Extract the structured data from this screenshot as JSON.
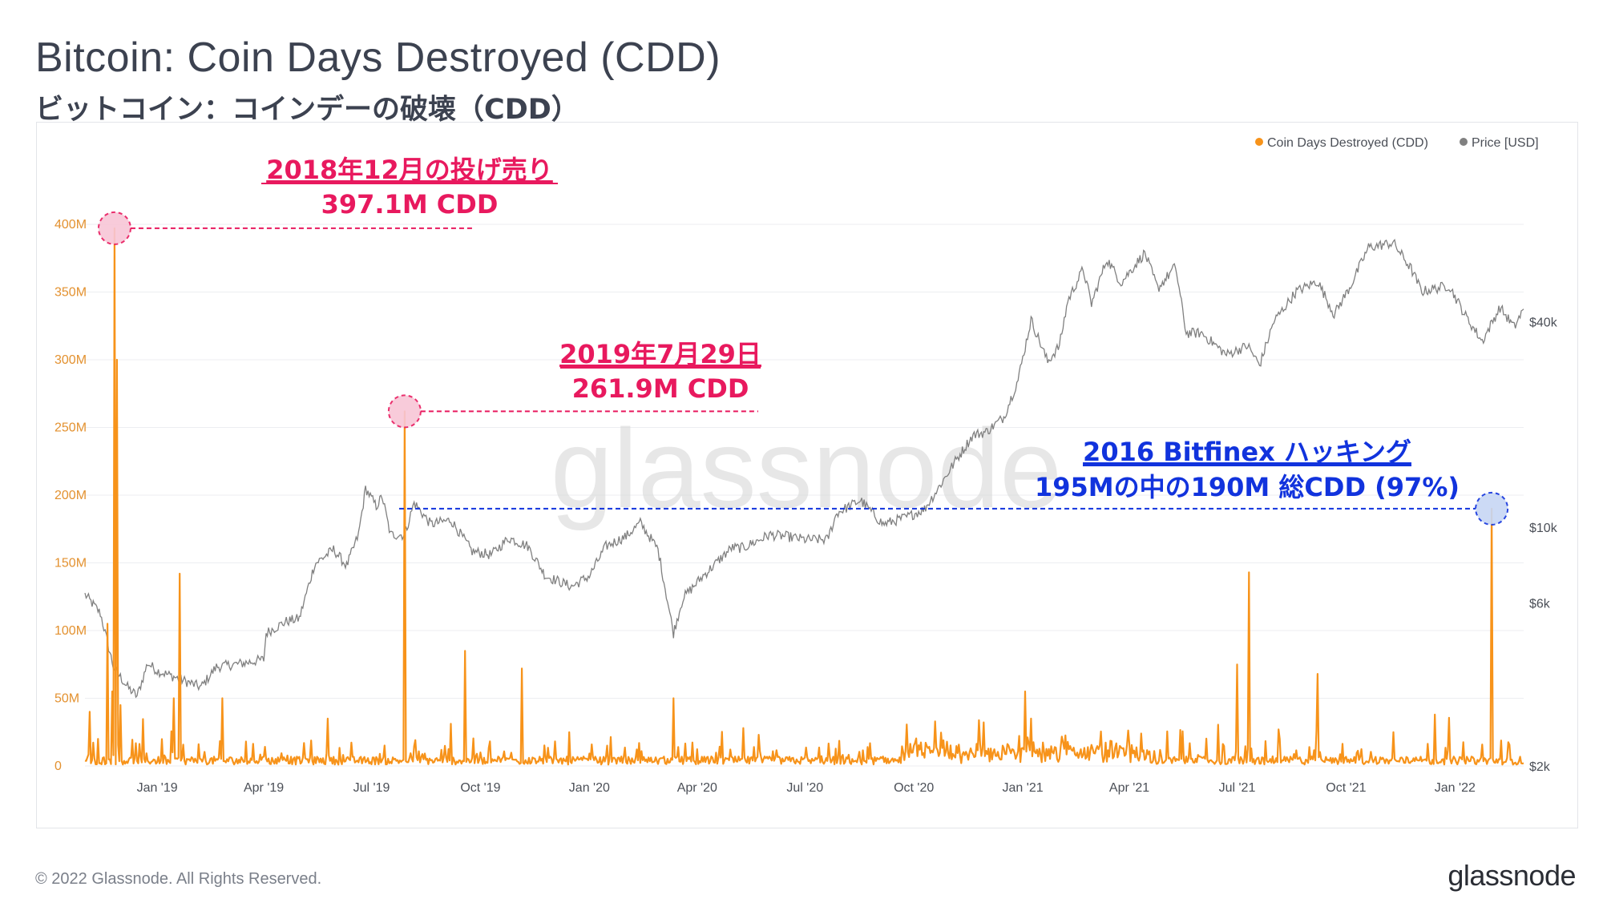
{
  "header": {
    "title": "Bitcoin: Coin Days Destroyed (CDD)",
    "subtitle": "ビットコイン：コインデーの破壊（CDD）"
  },
  "footer": {
    "copyright": "© 2022 Glassnode. All Rights Reserved.",
    "brand": "glassnode"
  },
  "watermark": "glassnode",
  "legend": [
    {
      "label": "Coin Days Destroyed (CDD)",
      "color": "#f7931a"
    },
    {
      "label": "Price [USD]",
      "color": "#808080"
    }
  ],
  "chart_data": {
    "type": "line",
    "title": "Bitcoin: Coin Days Destroyed (CDD)",
    "x_range": [
      "2018-11-01",
      "2022-02-28"
    ],
    "x_ticks": [
      "Jan '19",
      "Apr '19",
      "Jul '19",
      "Oct '19",
      "Jan '20",
      "Apr '20",
      "Jul '20",
      "Oct '20",
      "Jan '21",
      "Apr '21",
      "Jul '21",
      "Oct '21",
      "Jan '22"
    ],
    "y_left": {
      "label": "",
      "ticks": [
        "0",
        "50M",
        "100M",
        "150M",
        "200M",
        "250M",
        "300M",
        "350M",
        "400M"
      ],
      "range": [
        0,
        400000000
      ]
    },
    "y_right": {
      "label": "",
      "scale": "log",
      "ticks": [
        "$2k",
        "$6k",
        "$10k",
        "$40k"
      ]
    },
    "series": [
      {
        "name": "Coin Days Destroyed (CDD)",
        "color": "#f7931a",
        "axis": "left",
        "baseline_M": 5,
        "spikes_M": [
          {
            "date": "2018-11-05",
            "value": 40
          },
          {
            "date": "2018-11-12",
            "value": 20
          },
          {
            "date": "2018-11-20",
            "value": 105
          },
          {
            "date": "2018-11-24",
            "value": 55
          },
          {
            "date": "2018-11-26",
            "value": 397.1
          },
          {
            "date": "2018-11-28",
            "value": 300
          },
          {
            "date": "2018-12-01",
            "value": 45
          },
          {
            "date": "2019-01-15",
            "value": 50
          },
          {
            "date": "2019-01-20",
            "value": 142
          },
          {
            "date": "2019-02-25",
            "value": 50
          },
          {
            "date": "2019-05-25",
            "value": 35
          },
          {
            "date": "2019-07-29",
            "value": 261.9
          },
          {
            "date": "2019-09-18",
            "value": 85
          },
          {
            "date": "2019-11-05",
            "value": 72
          },
          {
            "date": "2019-12-15",
            "value": 25
          },
          {
            "date": "2020-03-12",
            "value": 50
          },
          {
            "date": "2020-05-10",
            "value": 28
          },
          {
            "date": "2021-01-03",
            "value": 55
          },
          {
            "date": "2021-01-08",
            "value": 35
          },
          {
            "date": "2021-07-01",
            "value": 75
          },
          {
            "date": "2021-07-11",
            "value": 143
          },
          {
            "date": "2021-08-05",
            "value": 27
          },
          {
            "date": "2021-09-07",
            "value": 68
          },
          {
            "date": "2021-11-10",
            "value": 25
          },
          {
            "date": "2021-12-15",
            "value": 38
          },
          {
            "date": "2022-02-01",
            "value": 190
          }
        ]
      },
      {
        "name": "Price [USD]",
        "color": "#808080",
        "axis": "right",
        "points": [
          [
            "2018-11-01",
            6350
          ],
          [
            "2018-11-14",
            5600
          ],
          [
            "2018-11-20",
            4600
          ],
          [
            "2018-11-25",
            3900
          ],
          [
            "2018-12-07",
            3400
          ],
          [
            "2018-12-15",
            3200
          ],
          [
            "2018-12-24",
            4000
          ],
          [
            "2019-01-01",
            3800
          ],
          [
            "2019-01-15",
            3650
          ],
          [
            "2019-02-07",
            3400
          ],
          [
            "2019-02-20",
            3900
          ],
          [
            "2019-03-15",
            4000
          ],
          [
            "2019-04-01",
            4100
          ],
          [
            "2019-04-03",
            4900
          ],
          [
            "2019-04-20",
            5300
          ],
          [
            "2019-05-01",
            5400
          ],
          [
            "2019-05-14",
            7800
          ],
          [
            "2019-05-30",
            8600
          ],
          [
            "2019-06-10",
            7700
          ],
          [
            "2019-06-20",
            9500
          ],
          [
            "2019-06-26",
            13000
          ],
          [
            "2019-07-05",
            11500
          ],
          [
            "2019-07-10",
            12300
          ],
          [
            "2019-07-17",
            9500
          ],
          [
            "2019-07-29",
            9500
          ],
          [
            "2019-08-06",
            11800
          ],
          [
            "2019-08-20",
            10200
          ],
          [
            "2019-09-06",
            10500
          ],
          [
            "2019-09-24",
            8500
          ],
          [
            "2019-10-10",
            8300
          ],
          [
            "2019-10-25",
            9300
          ],
          [
            "2019-11-10",
            8800
          ],
          [
            "2019-11-25",
            7200
          ],
          [
            "2019-12-17",
            6700
          ],
          [
            "2020-01-01",
            7200
          ],
          [
            "2020-01-15",
            8800
          ],
          [
            "2020-02-01",
            9400
          ],
          [
            "2020-02-13",
            10300
          ],
          [
            "2020-02-28",
            8600
          ],
          [
            "2020-03-12",
            4900
          ],
          [
            "2020-03-20",
            6200
          ],
          [
            "2020-04-06",
            7200
          ],
          [
            "2020-04-30",
            8700
          ],
          [
            "2020-05-10",
            8700
          ],
          [
            "2020-06-01",
            9500
          ],
          [
            "2020-06-15",
            9400
          ],
          [
            "2020-07-01",
            9200
          ],
          [
            "2020-07-20",
            9200
          ],
          [
            "2020-07-28",
            11000
          ],
          [
            "2020-08-17",
            12000
          ],
          [
            "2020-09-05",
            10200
          ],
          [
            "2020-09-25",
            10700
          ],
          [
            "2020-10-10",
            11300
          ],
          [
            "2020-10-21",
            12900
          ],
          [
            "2020-11-05",
            15600
          ],
          [
            "2020-11-20",
            18600
          ],
          [
            "2020-12-01",
            19000
          ],
          [
            "2020-12-16",
            21000
          ],
          [
            "2020-12-28",
            27000
          ],
          [
            "2021-01-08",
            40500
          ],
          [
            "2021-01-22",
            30500
          ],
          [
            "2021-02-01",
            34000
          ],
          [
            "2021-02-08",
            46000
          ],
          [
            "2021-02-21",
            57000
          ],
          [
            "2021-02-28",
            45000
          ],
          [
            "2021-03-13",
            61000
          ],
          [
            "2021-03-25",
            52000
          ],
          [
            "2021-04-14",
            63500
          ],
          [
            "2021-04-25",
            50000
          ],
          [
            "2021-05-10",
            58000
          ],
          [
            "2021-05-19",
            37000
          ],
          [
            "2021-06-01",
            37000
          ],
          [
            "2021-06-22",
            32000
          ],
          [
            "2021-07-10",
            34000
          ],
          [
            "2021-07-20",
            29800
          ],
          [
            "2021-08-01",
            40000
          ],
          [
            "2021-08-20",
            49000
          ],
          [
            "2021-09-07",
            52500
          ],
          [
            "2021-09-21",
            42000
          ],
          [
            "2021-10-05",
            51000
          ],
          [
            "2021-10-20",
            66000
          ],
          [
            "2021-11-10",
            68000
          ],
          [
            "2021-11-25",
            57000
          ],
          [
            "2021-12-04",
            49000
          ],
          [
            "2021-12-27",
            51000
          ],
          [
            "2022-01-10",
            41500
          ],
          [
            "2022-01-24",
            35000
          ],
          [
            "2022-02-08",
            44000
          ],
          [
            "2022-02-20",
            38500
          ],
          [
            "2022-02-28",
            43500
          ]
        ]
      }
    ],
    "annotations": [
      {
        "line1": "2018年12月の投げ売り",
        "line2": "397.1M CDD",
        "color": "#e8195e",
        "date": "2018-11-26",
        "value_M": 397.1
      },
      {
        "line1": "2019年7月29日",
        "line2": "261.9M CDD",
        "color": "#e8195e",
        "date": "2019-07-29",
        "value_M": 261.9
      },
      {
        "line1": "2016 Bitfinex ハッキング",
        "line2": "195Mの中の190M 総CDD (97%)",
        "color": "#1133dd",
        "date": "2022-02-01",
        "value_M": 190
      }
    ]
  }
}
